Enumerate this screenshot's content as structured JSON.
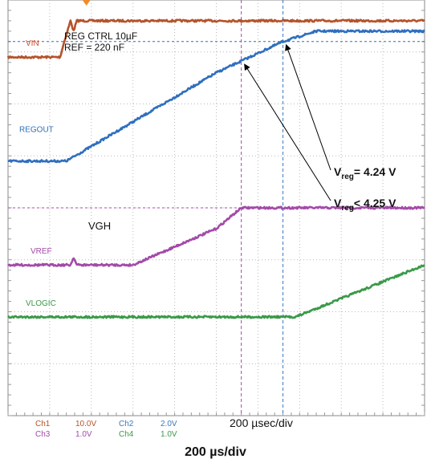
{
  "chart_data": {
    "type": "line",
    "title": "",
    "xlabel": "200 µs/div",
    "ylabel": "",
    "grid": true,
    "x_divisions": 10,
    "y_divisions": 8,
    "x_unit": "µs",
    "x_per_div": 200,
    "x_range": [
      0,
      2000
    ],
    "timebase_label": "200 µsec/div",
    "notes": [
      "REG CTRL 10µF",
      "REF = 220 nF"
    ],
    "vgh_label": "VGH",
    "trigger_marker": {
      "x": 280
    },
    "cursors": {
      "vertical": [
        {
          "color": "#a34aa8",
          "x": 1120
        },
        {
          "color": "#3a78c0",
          "x": 1320
        }
      ]
    },
    "annotations": [
      {
        "prefix": "V",
        "sub": "reg",
        "text": "= 4.24 V",
        "target_x": 1320
      },
      {
        "prefix": "V",
        "sub": "reg",
        "text": "< 4.25 V",
        "target_x": 1120
      }
    ],
    "channel_settings": [
      {
        "ch": "Ch1",
        "scale": "10.0V",
        "color": "#b5532a"
      },
      {
        "ch": "Ch2",
        "scale": "2.0V",
        "color": "#3a78c0"
      },
      {
        "ch": "Ch3",
        "scale": "1.0V",
        "color": "#a34aa8"
      },
      {
        "ch": "Ch4",
        "scale": "1.0V",
        "color": "#3a9a48"
      }
    ],
    "series": [
      {
        "name": "VIN",
        "color": "#b5532a",
        "label_color": "#c8502e",
        "ref_level_div": 6.9,
        "ref_line_color": "#b5532a",
        "points": [
          [
            0,
            6.9
          ],
          [
            250,
            6.9
          ],
          [
            270,
            7.2
          ],
          [
            300,
            7.6
          ],
          [
            315,
            7.4
          ],
          [
            330,
            7.6
          ],
          [
            2000,
            7.6
          ]
        ]
      },
      {
        "name": "REGOUT",
        "color": "#2f6fbf",
        "label_color": "#2f6fbf",
        "ref_level_div": 4.9,
        "ref_line_color": "#3a78c0",
        "ref_line_dashed_level_div": 7.2,
        "points": [
          [
            0,
            4.9
          ],
          [
            280,
            4.9
          ],
          [
            1000,
            6.6
          ],
          [
            1320,
            7.2
          ],
          [
            1480,
            7.4
          ],
          [
            2000,
            7.4
          ]
        ]
      },
      {
        "name": "VREF",
        "color": "#a34aa8",
        "label_color": "#a34aa8",
        "ref_level_div": 2.9,
        "ref_line_dashed_level_div": 4.0,
        "points": [
          [
            0,
            2.9
          ],
          [
            300,
            2.9
          ],
          [
            315,
            3.05
          ],
          [
            330,
            2.9
          ],
          [
            600,
            2.9
          ],
          [
            1000,
            3.6
          ],
          [
            1120,
            4.0
          ],
          [
            2000,
            4.0
          ]
        ]
      },
      {
        "name": "VLOGIC",
        "color": "#3a9a48",
        "label_color": "#3a9a48",
        "ref_level_div": 1.9,
        "points": [
          [
            0,
            1.9
          ],
          [
            1380,
            1.9
          ],
          [
            2000,
            2.9
          ]
        ]
      }
    ]
  }
}
